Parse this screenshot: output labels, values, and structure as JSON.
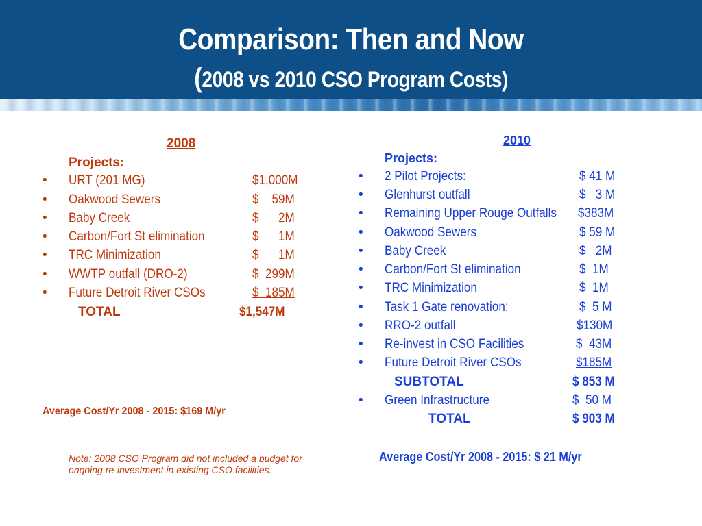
{
  "header": {
    "title": "Comparison: Then and Now",
    "subtitle_paren": "(",
    "subtitle": "2008 vs 2010 CSO Program Costs)"
  },
  "col2008": {
    "year": "2008",
    "projects_label": "Projects:",
    "items": [
      {
        "label": "URT (201 MG)",
        "amount": "$1,000M"
      },
      {
        "label": "Oakwood Sewers",
        "amount": "$    59M"
      },
      {
        "label": "Baby Creek",
        "amount": "$      2M"
      },
      {
        "label": "Carbon/Fort St elimination",
        "amount": "$      1M"
      },
      {
        "label": "TRC Minimization",
        "amount": "$      1M"
      },
      {
        "label": "WWTP outfall (DRO-2)",
        "amount": "$  299M"
      },
      {
        "label": "Future Detroit River CSOs",
        "amount": "$  185M"
      }
    ],
    "total_label": "TOTAL",
    "total_amount": "$1,547M",
    "average": "Average Cost/Yr 2008 - 2015:  $169 M/yr",
    "note": "Note: 2008 CSO Program did not included a budget for ongoing re-investment in existing CSO facilities."
  },
  "col2010": {
    "year": "2010",
    "projects_label": "Projects:",
    "items": [
      {
        "label": "2 Pilot Projects:",
        "amount": "$ 41 M"
      },
      {
        "label": "Glenhurst outfall",
        "amount": "$   3 M"
      },
      {
        "label": "Remaining Upper Rouge Outfalls",
        "amount": "$383M"
      },
      {
        "label": "Oakwood Sewers",
        "amount": "$ 59 M"
      },
      {
        "label": "Baby Creek",
        "amount": "$   2M"
      },
      {
        "label": "Carbon/Fort St elimination",
        "amount": "$  1M"
      },
      {
        "label": "TRC Minimization",
        "amount": "$  1M"
      },
      {
        "label": "Task 1 Gate renovation:",
        "amount": "$  5 M"
      },
      {
        "label": "RRO-2 outfall",
        "amount": "$130M"
      },
      {
        "label": "Re-invest in CSO Facilities",
        "amount": "$  43M"
      },
      {
        "label": "Future Detroit River CSOs",
        "amount": "$185M"
      }
    ],
    "subtotal_label": "SUBTOTAL",
    "subtotal_amount": "$ 853 M",
    "green": {
      "label": "Green Infrastructure",
      "amount": "$  50 M"
    },
    "total_label": "TOTAL",
    "total_amount": "$ 903 M",
    "average": "Average Cost/Yr 2008 - 2015:  $ 21 M/yr"
  },
  "bullet_char": "•",
  "colors": {
    "header": "#0d4f86",
    "col2008": "#c0390d",
    "col2010": "#1a3fd6"
  }
}
